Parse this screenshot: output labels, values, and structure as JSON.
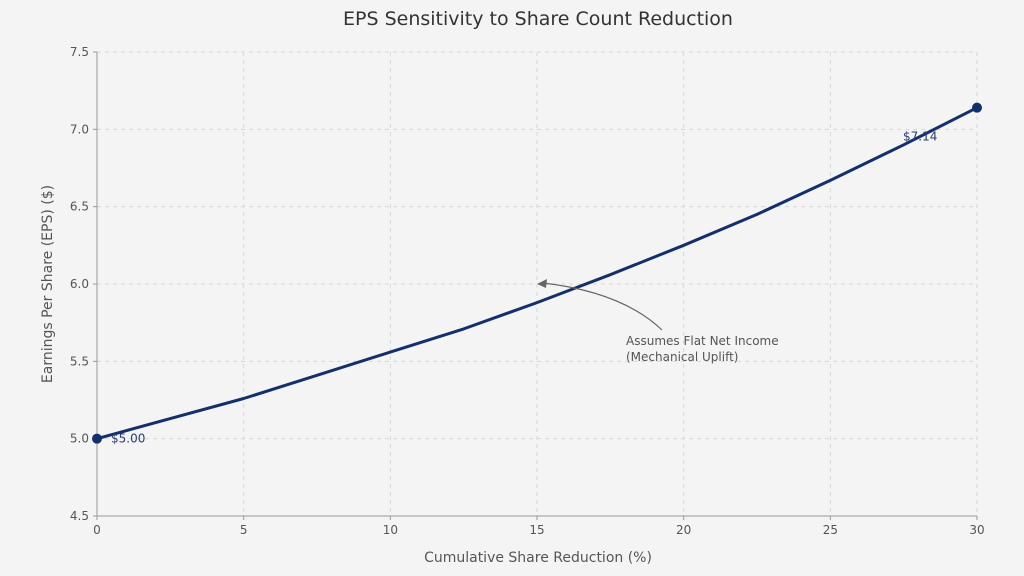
{
  "chart_data": {
    "type": "line",
    "title": "EPS Sensitivity to Share Count Reduction",
    "xlabel": "Cumulative Share Reduction (%)",
    "ylabel": "Earnings Per Share (EPS) ($)",
    "xlim": [
      0,
      30
    ],
    "ylim": [
      4.5,
      7.5
    ],
    "x_ticks": [
      0,
      5,
      10,
      15,
      20,
      25,
      30
    ],
    "y_ticks": [
      4.5,
      5.0,
      5.5,
      6.0,
      6.5,
      7.0,
      7.5
    ],
    "x_tick_labels": [
      "0",
      "5",
      "10",
      "15",
      "20",
      "25",
      "30"
    ],
    "y_tick_labels": [
      "4.5",
      "5.0",
      "5.5",
      "6.0",
      "6.5",
      "7.0",
      "7.5"
    ],
    "grid": true,
    "series": [
      {
        "color": "#14306b",
        "x": [
          0,
          2.5,
          5,
          7.5,
          10,
          12.5,
          15,
          17.5,
          20,
          22.5,
          25,
          27.5,
          30
        ],
        "y": [
          5.0,
          5.13,
          5.26,
          5.41,
          5.56,
          5.71,
          5.88,
          6.06,
          6.25,
          6.45,
          6.67,
          6.9,
          7.14
        ]
      }
    ],
    "endpoints": [
      {
        "x": 0,
        "y": 5.0,
        "label": "$5.00"
      },
      {
        "x": 30,
        "y": 7.14,
        "label": "$7.14"
      }
    ],
    "annotation": {
      "lines": [
        "Assumes Flat Net Income",
        "(Mechanical Uplift)"
      ],
      "points_to": {
        "x": 15,
        "y": 6.0
      }
    }
  }
}
